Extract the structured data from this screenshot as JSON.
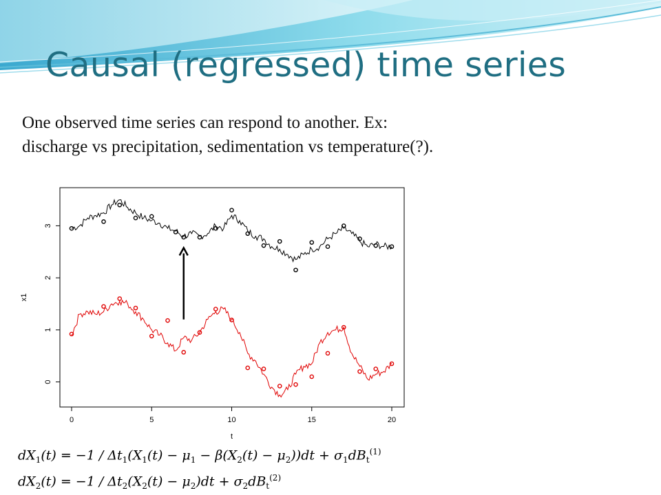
{
  "slide": {
    "title": "Causal (regressed) time series",
    "body_lines": [
      "One observed time series can respond to another. Ex:",
      "discharge vs precipitation, sedimentation vs temperature(?)."
    ],
    "equations": [
      "dX₁(t) = −1/Δt₁(X₁(t) − μ₁ − β(X₂(t) − μ₂))dt + σ₁dB_t^(1)",
      "dX₂(t) = −1/Δt₂(X₂(t) − μ₂)dt + σ₂dB_t^(2)"
    ]
  },
  "colors": {
    "title": "#1f6e82",
    "series_black": "#000000",
    "series_red": "#e00000",
    "banner": "#7fd0e6"
  },
  "chart_data": {
    "type": "line",
    "title": "",
    "xlabel": "t",
    "ylabel": "x1",
    "xlim": [
      0,
      20
    ],
    "ylim": [
      -0.35,
      3.6
    ],
    "xticks": [
      "0",
      "5",
      "10",
      "15",
      "20"
    ],
    "yticks": [
      "0",
      "1",
      "2",
      "3"
    ],
    "grid": false,
    "annotations": [
      "upward arrow at t≈7 from red series to black series"
    ],
    "series": [
      {
        "color": "black",
        "x": [
          0,
          0.5,
          1,
          1.5,
          2,
          2.5,
          3,
          3.5,
          4,
          4.5,
          5,
          5.5,
          6,
          6.5,
          7,
          7.5,
          8,
          8.5,
          9,
          9.5,
          10,
          10.5,
          11,
          11.5,
          12,
          12.5,
          13,
          13.5,
          14,
          14.5,
          15,
          15.5,
          16,
          16.5,
          17,
          17.5,
          18,
          18.5,
          19,
          19.5,
          20
        ],
        "values": [
          2.95,
          3.0,
          3.15,
          3.2,
          3.25,
          3.4,
          3.5,
          3.35,
          3.25,
          3.15,
          3.1,
          3.05,
          2.95,
          2.9,
          2.8,
          2.85,
          2.8,
          2.85,
          3.0,
          2.95,
          3.2,
          3.1,
          2.9,
          2.8,
          2.75,
          2.6,
          2.55,
          2.45,
          2.35,
          2.45,
          2.55,
          2.6,
          2.75,
          2.85,
          2.95,
          2.85,
          2.7,
          2.6,
          2.65,
          2.6,
          2.6
        ]
      },
      {
        "color": "red",
        "x": [
          0,
          0.5,
          1,
          1.5,
          2,
          2.5,
          3,
          3.5,
          4,
          4.5,
          5,
          5.5,
          6,
          6.5,
          7,
          7.5,
          8,
          8.5,
          9,
          9.5,
          10,
          10.5,
          11,
          11.5,
          12,
          12.5,
          13,
          13.5,
          14,
          14.5,
          15,
          15.5,
          16,
          16.5,
          17,
          17.5,
          18,
          18.5,
          19,
          19.5,
          20
        ],
        "values": [
          0.9,
          1.3,
          1.35,
          1.3,
          1.35,
          1.5,
          1.55,
          1.5,
          1.35,
          1.2,
          1.0,
          0.9,
          0.75,
          0.6,
          0.85,
          0.8,
          0.95,
          1.2,
          1.35,
          1.4,
          1.2,
          0.95,
          0.55,
          0.4,
          0.15,
          -0.1,
          -0.25,
          -0.15,
          0.15,
          0.3,
          0.35,
          0.75,
          0.95,
          1.0,
          1.05,
          0.55,
          0.3,
          0.05,
          0.15,
          0.2,
          0.35
        ]
      }
    ],
    "points": [
      {
        "color": "black",
        "x": [
          0,
          2,
          3,
          4,
          5,
          6.5,
          7,
          8,
          9,
          10,
          11,
          12,
          13,
          14,
          15,
          16,
          17,
          18,
          19,
          20
        ],
        "values": [
          2.95,
          3.08,
          3.4,
          3.15,
          3.18,
          2.88,
          2.78,
          2.78,
          2.95,
          3.3,
          2.85,
          2.62,
          2.7,
          2.15,
          2.68,
          2.6,
          3.0,
          2.75,
          2.62,
          2.6
        ]
      },
      {
        "color": "red",
        "x": [
          0,
          2,
          3,
          4,
          5,
          6,
          7,
          8,
          9,
          10,
          11,
          12,
          13,
          14,
          15,
          16,
          17,
          18,
          19,
          20
        ],
        "values": [
          0.92,
          1.45,
          1.6,
          1.42,
          0.88,
          1.18,
          0.57,
          0.95,
          1.4,
          1.19,
          0.27,
          0.25,
          -0.08,
          -0.05,
          0.1,
          0.55,
          1.05,
          0.2,
          0.25,
          0.35
        ]
      }
    ]
  }
}
